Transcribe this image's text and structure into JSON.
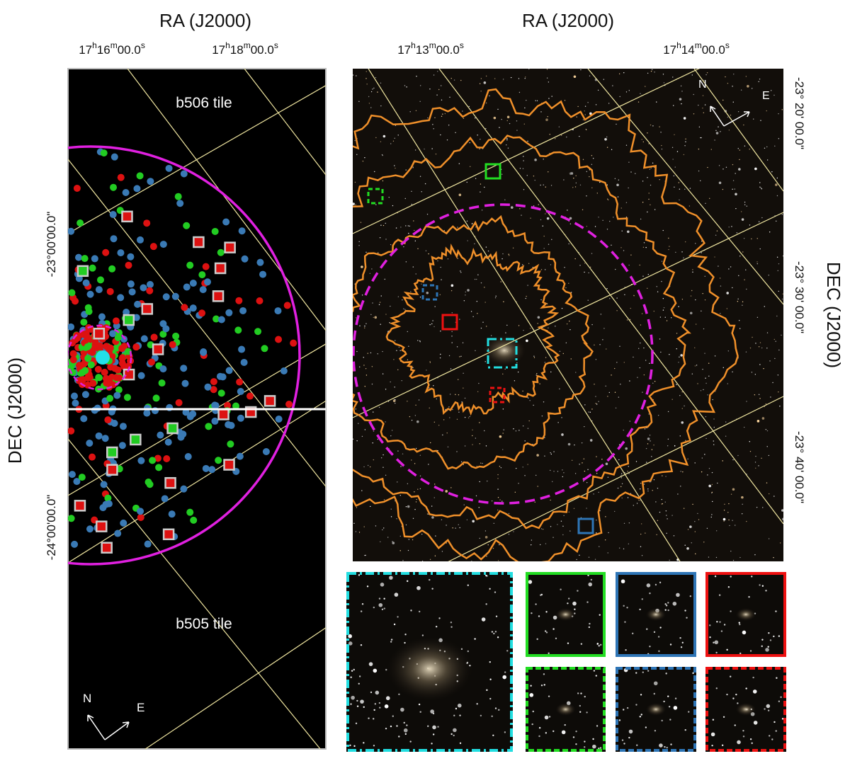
{
  "left_panel": {
    "ra_title": "RA (J2000)",
    "ra_ticks": [
      [
        "17",
        "h",
        "16",
        "m",
        "00.0",
        "s"
      ],
      [
        "17",
        "h",
        "18",
        "m",
        "00.0",
        "s"
      ]
    ],
    "dec_title": "DEC (J2000)",
    "dec_ticks": [
      "-23°00'00.0\"",
      "-24°00'00.0\""
    ],
    "tiles": [
      "b506 tile",
      "b505 tile"
    ],
    "compass": {
      "north": "N",
      "east": "E"
    }
  },
  "right_panel": {
    "ra_title": "RA (J2000)",
    "ra_ticks": [
      [
        "17",
        "h",
        "13",
        "m",
        "00.0",
        "s"
      ],
      [
        "17",
        "h",
        "14",
        "m",
        "00.0",
        "s"
      ]
    ],
    "dec_title": "DEC (J2000)",
    "dec_ticks": [
      "-23° 20' 00.0\"",
      "-23° 30' 00.0\"",
      "-23° 40' 00.0\""
    ],
    "compass": {
      "north": "N",
      "east": "E"
    }
  }
}
